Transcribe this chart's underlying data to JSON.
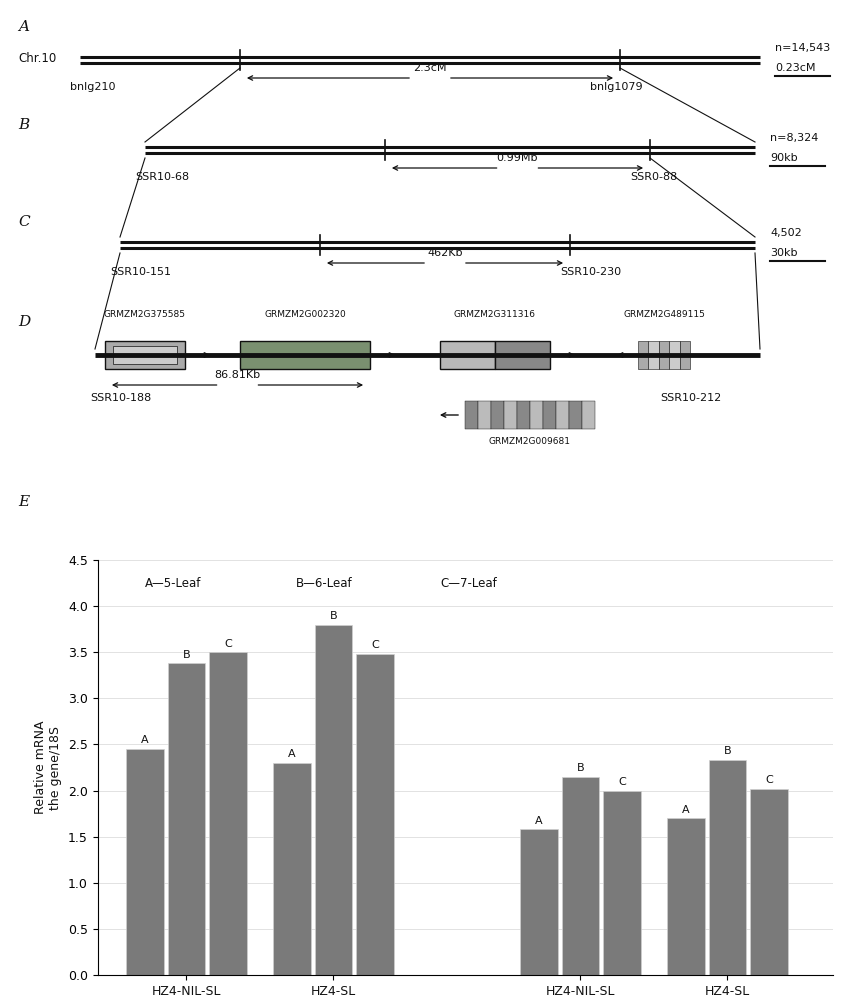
{
  "bg_color": "#ffffff",
  "bar_color": "#7a7a7a",
  "bar_groups": {
    "HZ4-NIL-SL_1": [
      2.45,
      3.38,
      3.5
    ],
    "HZ4-SL_1": [
      2.3,
      3.8,
      3.48
    ],
    "HZ4-NIL-SL_2": [
      1.58,
      2.15,
      2.0
    ],
    "HZ4-SL_2": [
      1.7,
      2.33,
      2.02
    ]
  },
  "bar_labels": {
    "HZ4-NIL-SL_1": [
      "A",
      "B",
      "C"
    ],
    "HZ4-SL_1": [
      "A",
      "B",
      "C"
    ],
    "HZ4-NIL-SL_2": [
      "A",
      "B",
      "C"
    ],
    "HZ4-SL_2": [
      "A",
      "B",
      "C"
    ]
  },
  "x_labels": [
    "HZ4-NIL-SL",
    "HZ4-SL",
    "HZ4-NIL-SL",
    "HZ4-SL"
  ],
  "y_label_line1": "Relative mRNA",
  "y_label_line2": "the gene/18S",
  "ylim": [
    0,
    4.5
  ],
  "yticks": [
    0.0,
    0.5,
    1.0,
    1.5,
    2.0,
    2.5,
    3.0,
    3.5,
    4.0,
    4.5
  ],
  "legend_entries": [
    "A—5-Leaf",
    "B—6-Leaf",
    "C—7-Leaf"
  ],
  "section_A": {
    "chr_label": "Chr.10",
    "n_label": "n=14,543",
    "scale_label": "0.23cM",
    "distance_label": "2.3cM",
    "marker_left": "bnlg210",
    "marker_right": "bnlg1079"
  },
  "section_B": {
    "n_label": "n=8,324",
    "scale_label": "90kb",
    "distance_label": "0.99Mb",
    "marker_left": "SSR10-68",
    "marker_right": "SSR0-88"
  },
  "section_C": {
    "n_label": "4,502",
    "scale_label": "30kb",
    "distance_label": "462Kb",
    "marker_left": "SSR10-151",
    "marker_right": "SSR10-230"
  },
  "section_D": {
    "distance_label": "86.81Kb",
    "marker_left": "SSR10-188",
    "marker_right": "SSR10-212",
    "genes_top": [
      "GRMZM2G375585",
      "GRMZM2G002320",
      "GRMZM2G311316",
      "GRMZM2G489115"
    ],
    "gene_below": "GRMZM2G009681"
  }
}
